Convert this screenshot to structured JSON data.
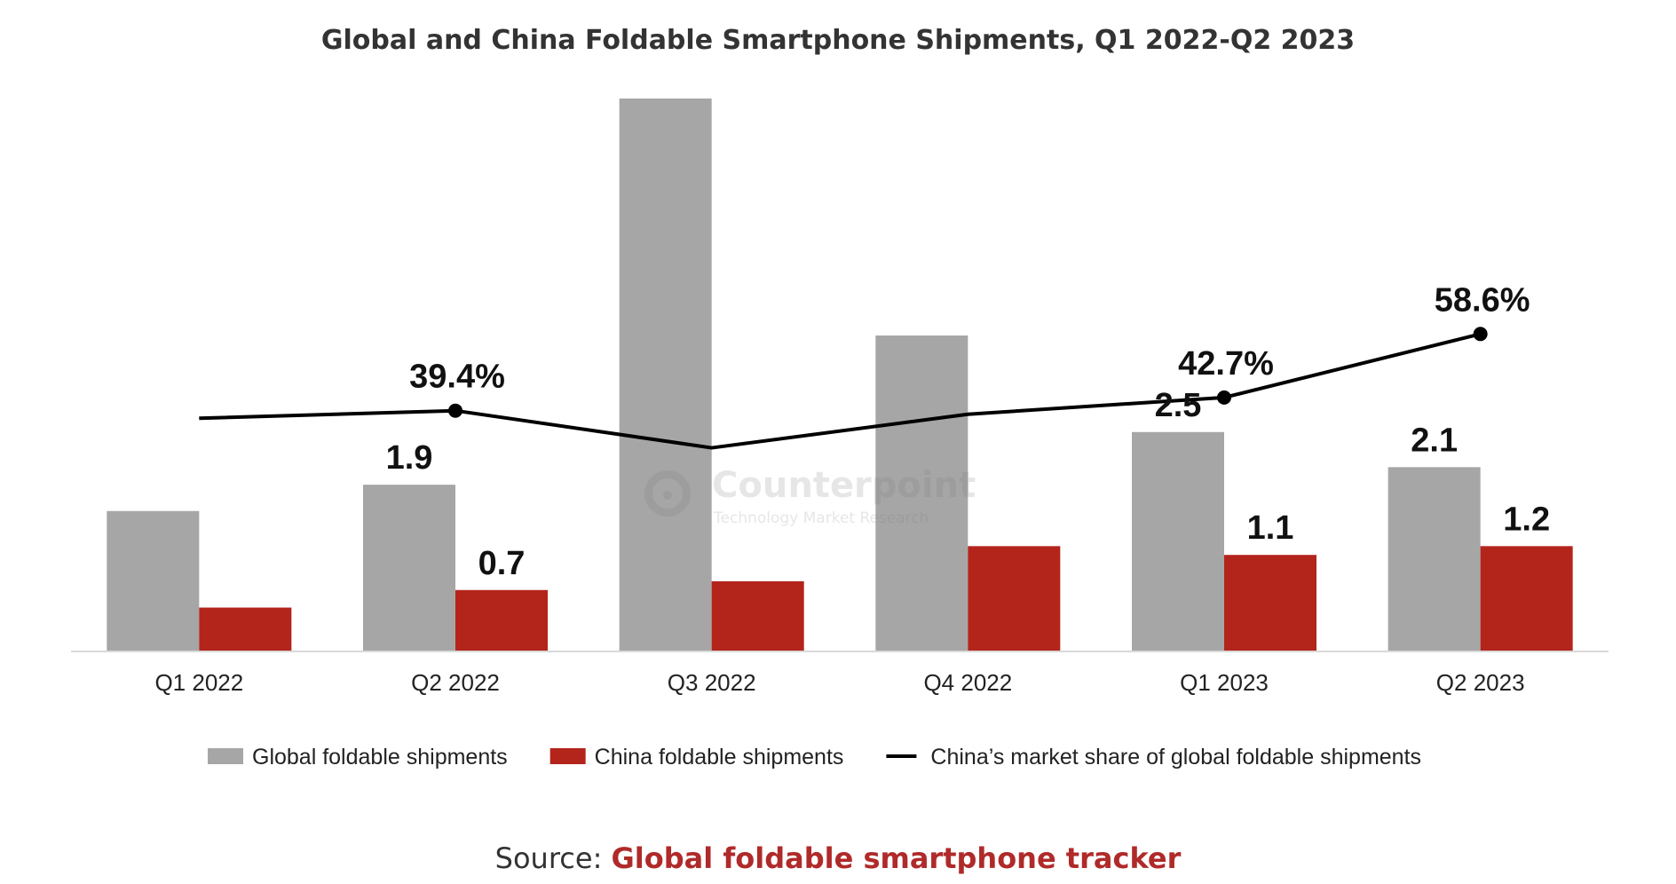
{
  "title": "Global and China Foldable Smartphone Shipments, Q1 2022-Q2 2023",
  "source": {
    "prefix": "Source: ",
    "link_text": "Global foldable smartphone tracker"
  },
  "watermark": {
    "name": "Counterpoint",
    "subtitle": "Technology Market Research"
  },
  "colors": {
    "global": "#a6a6a6",
    "china": "#b3241b",
    "share": "#000000",
    "axis": "#d9d9d9"
  },
  "chart_data": {
    "type": "bar",
    "categories": [
      "Q1 2022",
      "Q2 2022",
      "Q3 2022",
      "Q4 2022",
      "Q1 2023",
      "Q2 2023"
    ],
    "bar_ylim": [
      0,
      5.4
    ],
    "share_ylim": [
      0,
      100
    ],
    "series": [
      {
        "name": "Global foldable shipments",
        "type": "bar",
        "values": [
          1.6,
          1.9,
          6.3,
          3.6,
          2.5,
          2.1
        ],
        "labels": [
          "",
          "1.9",
          "",
          "",
          "2.5",
          "2.1"
        ]
      },
      {
        "name": "China foldable shipments",
        "type": "bar",
        "values": [
          0.5,
          0.7,
          0.8,
          1.2,
          1.1,
          1.2
        ],
        "labels": [
          "",
          "0.7",
          "",
          "",
          "1.1",
          "1.2"
        ]
      },
      {
        "name": "China’s market share of global foldable shipments",
        "type": "line",
        "values": [
          37.5,
          39.4,
          30.1,
          38.5,
          42.7,
          58.6
        ],
        "labels": [
          "",
          "39.4%",
          "",
          "",
          "42.7%",
          "58.6%"
        ],
        "markers": [
          false,
          true,
          false,
          false,
          true,
          true
        ]
      }
    ],
    "legend_position": "bottom",
    "grid": false
  }
}
